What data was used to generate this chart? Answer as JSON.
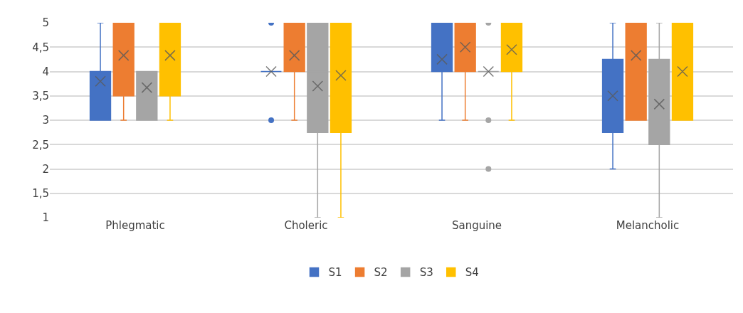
{
  "chart_data": {
    "type": "box",
    "categories": [
      "Phlegmatic",
      "Choleric",
      "Sanguine",
      "Melancholic"
    ],
    "series": [
      {
        "name": "S1",
        "color": "#4472c4",
        "boxes": [
          {
            "low": 3,
            "q1": 3,
            "median": 4,
            "q3": 4,
            "high": 5,
            "mean": 3.8
          },
          {
            "low": 4,
            "q1": 4,
            "median": 4,
            "q3": 4,
            "high": 4,
            "mean": 4,
            "outliers": [
              5,
              3
            ]
          },
          {
            "low": 3,
            "q1": 4,
            "median": 4,
            "q3": 5,
            "high": 5,
            "mean": 4.25
          },
          {
            "low": 2,
            "q1": 2.75,
            "median": 3.5,
            "q3": 4.25,
            "high": 5,
            "mean": 3.5
          }
        ]
      },
      {
        "name": "S2",
        "color": "#ed7d31",
        "boxes": [
          {
            "low": 3,
            "q1": 3.5,
            "median": 5,
            "q3": 5,
            "high": 5,
            "mean": 4.33
          },
          {
            "low": 3,
            "q1": 4,
            "median": 4,
            "q3": 5,
            "high": 5,
            "mean": 4.33
          },
          {
            "low": 3,
            "q1": 4,
            "median": 5,
            "q3": 5,
            "high": 5,
            "mean": 4.5
          },
          {
            "low": 3,
            "q1": 3,
            "median": 5,
            "q3": 5,
            "high": 5,
            "mean": 4.33
          }
        ]
      },
      {
        "name": "S3",
        "color": "#a5a5a5",
        "boxes": [
          {
            "low": 3,
            "q1": 3,
            "median": 4,
            "q3": 4,
            "high": 4,
            "mean": 3.67
          },
          {
            "low": 1,
            "q1": 2.75,
            "median": 4,
            "q3": 5,
            "high": 5,
            "mean": 3.7
          },
          {
            "low": 4,
            "q1": 4,
            "median": 4,
            "q3": 4,
            "high": 4,
            "mean": 4,
            "outliers": [
              5,
              3,
              2
            ]
          },
          {
            "low": 1,
            "q1": 2.5,
            "median": 3.5,
            "q3": 4.25,
            "high": 5,
            "mean": 3.33
          }
        ]
      },
      {
        "name": "S4",
        "color": "#ffc000",
        "boxes": [
          {
            "low": 3,
            "q1": 3.5,
            "median": 5,
            "q3": 5,
            "high": 5,
            "mean": 4.33
          },
          {
            "low": 1,
            "q1": 2.75,
            "median": 4.5,
            "q3": 5,
            "high": 5,
            "mean": 3.92
          },
          {
            "low": 3,
            "q1": 4,
            "median": 5,
            "q3": 5,
            "high": 5,
            "mean": 4.45
          },
          {
            "low": 3,
            "q1": 3,
            "median": 4,
            "q3": 5,
            "high": 5,
            "mean": 4
          }
        ]
      }
    ],
    "ylim": [
      1,
      5
    ],
    "yticks": [
      1,
      {
        "value": 1.5,
        "label": "1,5"
      },
      2,
      {
        "value": 2.5,
        "label": "2,5"
      },
      3,
      {
        "value": 3.5,
        "label": "3,5"
      },
      4,
      {
        "value": 4.5,
        "label": "4,5"
      },
      5
    ],
    "grid": "y",
    "legend": "bottom"
  }
}
